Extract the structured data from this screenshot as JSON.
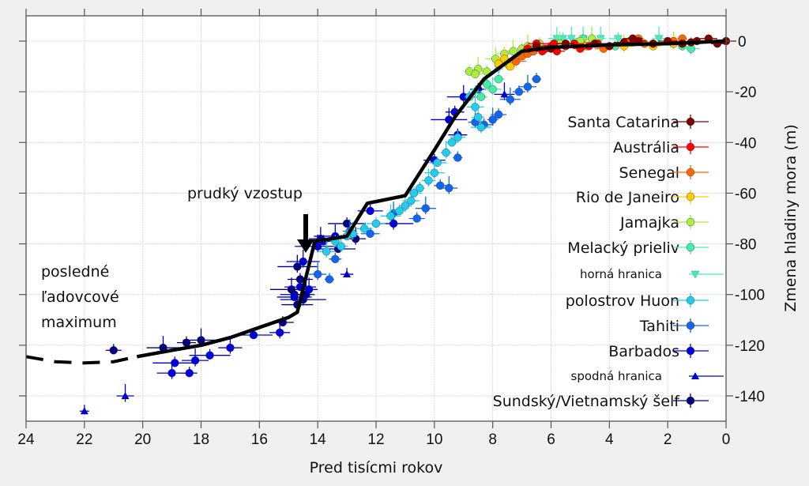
{
  "chart_data": {
    "type": "scatter",
    "title": "",
    "xlabel": "Pred tisícmi rokov",
    "ylabel": "Zmena hladiny mora (m)",
    "xlim": [
      24,
      0
    ],
    "ylim": [
      -150,
      10
    ],
    "x_reversed": true,
    "y_axis_side": "right",
    "grid": true,
    "x_ticks": [
      24,
      22,
      20,
      18,
      16,
      14,
      12,
      10,
      8,
      6,
      4,
      2,
      0
    ],
    "y_ticks": [
      0,
      -20,
      -40,
      -60,
      -80,
      -100,
      -120,
      -140
    ],
    "x_tick_labels": [
      "24",
      "22",
      "20",
      "18",
      "16",
      "14",
      "12",
      "10",
      "8",
      "6",
      "4",
      "2",
      "0"
    ],
    "y_tick_labels": [
      "0",
      "-20",
      "-40",
      "-60",
      "-80",
      "-100",
      "-120",
      "-140"
    ],
    "legend_position": "right",
    "annotations": {
      "lgm": [
        "posledné",
        "ľadovcové",
        "maximum"
      ],
      "rise": "prudký vzostup",
      "rise_arrow_at": {
        "x": 14.5,
        "y_from": -68,
        "y_to": -83
      }
    },
    "curve": {
      "name": "sea-level-curve",
      "color": "#000000",
      "dashed_segment": {
        "x": [
          24,
          23,
          22,
          21,
          20.2
        ],
        "y": [
          -124.5,
          -126.5,
          -127,
          -126.5,
          -124.5
        ]
      },
      "solid_segment": {
        "x": [
          20.2,
          19,
          18,
          17,
          16,
          15,
          14.7,
          14.1,
          13,
          12.3,
          11,
          10,
          9.3,
          8.3,
          7,
          6,
          4,
          2,
          0
        ],
        "y": [
          -124.5,
          -122,
          -120,
          -117,
          -113,
          -109,
          -107,
          -79,
          -77,
          -64,
          -61,
          -43,
          -30,
          -15,
          -4,
          -2.5,
          -1.5,
          -1,
          0
        ]
      }
    },
    "series": [
      {
        "name": "Santa Catarina",
        "color": "#800000",
        "marker": "circle",
        "points": [
          [
            6.5,
            -2
          ],
          [
            5.5,
            -1
          ],
          [
            4.5,
            -1
          ],
          [
            3.5,
            -0.5
          ],
          [
            3,
            0
          ],
          [
            2.5,
            -1
          ],
          [
            2,
            0
          ],
          [
            1.5,
            -1
          ],
          [
            1,
            0
          ],
          [
            0.6,
            1
          ],
          [
            0.3,
            -1
          ],
          [
            0,
            0
          ],
          [
            6,
            -3
          ],
          [
            4,
            -2
          ],
          [
            3.2,
            1
          ],
          [
            1.2,
            -0.5
          ]
        ]
      },
      {
        "name": "Austrália",
        "color": "#ff0000",
        "marker": "circle",
        "points": [
          [
            6.8,
            -3
          ],
          [
            6.5,
            -1
          ],
          [
            6.2,
            -3
          ],
          [
            6,
            -2
          ],
          [
            5.8,
            -4
          ],
          [
            5.5,
            -2
          ],
          [
            5.2,
            -1
          ],
          [
            5,
            -3
          ],
          [
            4.7,
            -2
          ],
          [
            4.4,
            -1
          ],
          [
            6.3,
            -4
          ],
          [
            5.9,
            -1
          ]
        ]
      },
      {
        "name": "Senegal",
        "color": "#ff6600",
        "marker": "circle",
        "points": [
          [
            7,
            -6
          ],
          [
            6.8,
            -5
          ],
          [
            6.6,
            -4
          ],
          [
            7.2,
            -8
          ],
          [
            3.3,
            0
          ],
          [
            3,
            1
          ],
          [
            2.8,
            -1
          ],
          [
            1.8,
            0
          ],
          [
            1.5,
            1
          ],
          [
            4.2,
            -3
          ]
        ]
      },
      {
        "name": "Rio de Janeiro",
        "color": "#ffcc00",
        "marker": "circle",
        "points": [
          [
            7.8,
            -9
          ],
          [
            7.6,
            -7
          ],
          [
            7.4,
            -10
          ],
          [
            3.5,
            -2
          ],
          [
            2.5,
            -2
          ],
          [
            1.8,
            -1
          ],
          [
            4.8,
            -2
          ]
        ]
      },
      {
        "name": "Jamajka",
        "color": "#aaee44",
        "marker": "circle",
        "points": [
          [
            8.8,
            -12
          ],
          [
            8.5,
            -11
          ],
          [
            8.2,
            -12
          ],
          [
            7.9,
            -7
          ],
          [
            7.6,
            -5
          ],
          [
            7.3,
            -4
          ],
          [
            7,
            -3
          ],
          [
            6.8,
            -2
          ],
          [
            6.4,
            -1
          ],
          [
            5.7,
            -1
          ],
          [
            5,
            0
          ],
          [
            4.6,
            1
          ],
          [
            8.6,
            -13
          ]
        ]
      },
      {
        "name": "Melacký prieliv",
        "color": "#44eeaa",
        "marker": "circle",
        "points": [
          [
            8.2,
            -17
          ],
          [
            8,
            -19
          ],
          [
            7.8,
            -15
          ],
          [
            7.5,
            -9
          ],
          [
            6.7,
            -4
          ],
          [
            4.9,
            1
          ],
          [
            3.8,
            -2
          ],
          [
            1.8,
            -1
          ],
          [
            1.5,
            -2
          ],
          [
            1.2,
            -3
          ],
          [
            8.4,
            -22
          ]
        ]
      },
      {
        "name": "horná hranica",
        "color": "#44eebb",
        "marker": "triangle-down",
        "points": [
          [
            8.6,
            -20
          ],
          [
            5.8,
            1
          ],
          [
            5.6,
            1
          ],
          [
            5.3,
            1
          ],
          [
            4.9,
            1
          ],
          [
            4.3,
            1
          ],
          [
            3.7,
            1
          ],
          [
            2.3,
            1
          ],
          [
            7.8,
            -11
          ]
        ]
      },
      {
        "name": "polostrov Huon",
        "color": "#22ccee",
        "marker": "circle",
        "points": [
          [
            8.8,
            -22
          ],
          [
            8.6,
            -26
          ],
          [
            8.5,
            -30
          ],
          [
            8.4,
            -34
          ],
          [
            9.2,
            -38
          ],
          [
            9.6,
            -44
          ],
          [
            9.9,
            -48
          ],
          [
            10.2,
            -55
          ],
          [
            10.5,
            -58
          ],
          [
            10.8,
            -63
          ],
          [
            11.2,
            -67
          ],
          [
            11.5,
            -69
          ],
          [
            12.4,
            -74
          ],
          [
            12.8,
            -76
          ],
          [
            13,
            -77
          ],
          [
            13.2,
            -81
          ],
          [
            13.4,
            -79
          ],
          [
            13.7,
            -83
          ],
          [
            9.4,
            -40
          ],
          [
            10,
            -52
          ],
          [
            10.7,
            -60
          ],
          [
            11,
            -65
          ],
          [
            12,
            -72
          ]
        ]
      },
      {
        "name": "Tahiti",
        "color": "#1166ee",
        "marker": "circle",
        "points": [
          [
            6.5,
            -15
          ],
          [
            6.8,
            -18
          ],
          [
            7.1,
            -20
          ],
          [
            7.4,
            -23
          ],
          [
            7.8,
            -29
          ],
          [
            8,
            -31
          ],
          [
            8.3,
            -33
          ],
          [
            8.6,
            -32
          ],
          [
            9.2,
            -46
          ],
          [
            9.5,
            -58
          ],
          [
            9.8,
            -57
          ],
          [
            10.3,
            -66
          ],
          [
            10.6,
            -70
          ],
          [
            11.4,
            -68
          ],
          [
            12.2,
            -76
          ],
          [
            12.9,
            -75
          ],
          [
            13.6,
            -94
          ],
          [
            14,
            -92
          ],
          [
            13.4,
            -86
          ]
        ]
      },
      {
        "name": "Barbados",
        "color": "#0000dd",
        "marker": "circle",
        "points": [
          [
            8.5,
            -19
          ],
          [
            9,
            -22
          ],
          [
            9.3,
            -28
          ],
          [
            9.5,
            -31
          ],
          [
            10,
            -47
          ],
          [
            11.4,
            -72
          ],
          [
            12.2,
            -67
          ],
          [
            13.4,
            -77
          ],
          [
            13.8,
            -79
          ],
          [
            14,
            -81
          ],
          [
            14.6,
            -97
          ],
          [
            14.3,
            -98
          ],
          [
            14.8,
            -101
          ],
          [
            15.3,
            -115
          ],
          [
            16.2,
            -116
          ],
          [
            17,
            -121
          ],
          [
            17.7,
            -124
          ],
          [
            18.2,
            -126
          ],
          [
            18.9,
            -127
          ],
          [
            19,
            -131
          ],
          [
            18.4,
            -131
          ],
          [
            14.5,
            -87
          ],
          [
            9.2,
            -37
          ]
        ]
      },
      {
        "name": "spodná hranica",
        "color": "#0000cc",
        "marker": "triangle-up",
        "points": [
          [
            22,
            -146
          ],
          [
            20.6,
            -140
          ],
          [
            13,
            -92
          ],
          [
            7.6,
            -21
          ]
        ]
      },
      {
        "name": "Sundský/Vietnamský šelf",
        "color": "#000080",
        "marker": "circle",
        "points": [
          [
            21,
            -122
          ],
          [
            19.3,
            -121
          ],
          [
            18.5,
            -119
          ],
          [
            18,
            -118
          ],
          [
            15.2,
            -111
          ],
          [
            14.7,
            -89
          ],
          [
            14.6,
            -94
          ],
          [
            14.9,
            -98
          ],
          [
            14.8,
            -100
          ],
          [
            14.5,
            -102
          ],
          [
            14.7,
            -104
          ],
          [
            14.4,
            -100
          ],
          [
            13.3,
            -82
          ],
          [
            12.7,
            -78
          ],
          [
            13,
            -72
          ],
          [
            13.9,
            -78
          ]
        ]
      }
    ]
  }
}
